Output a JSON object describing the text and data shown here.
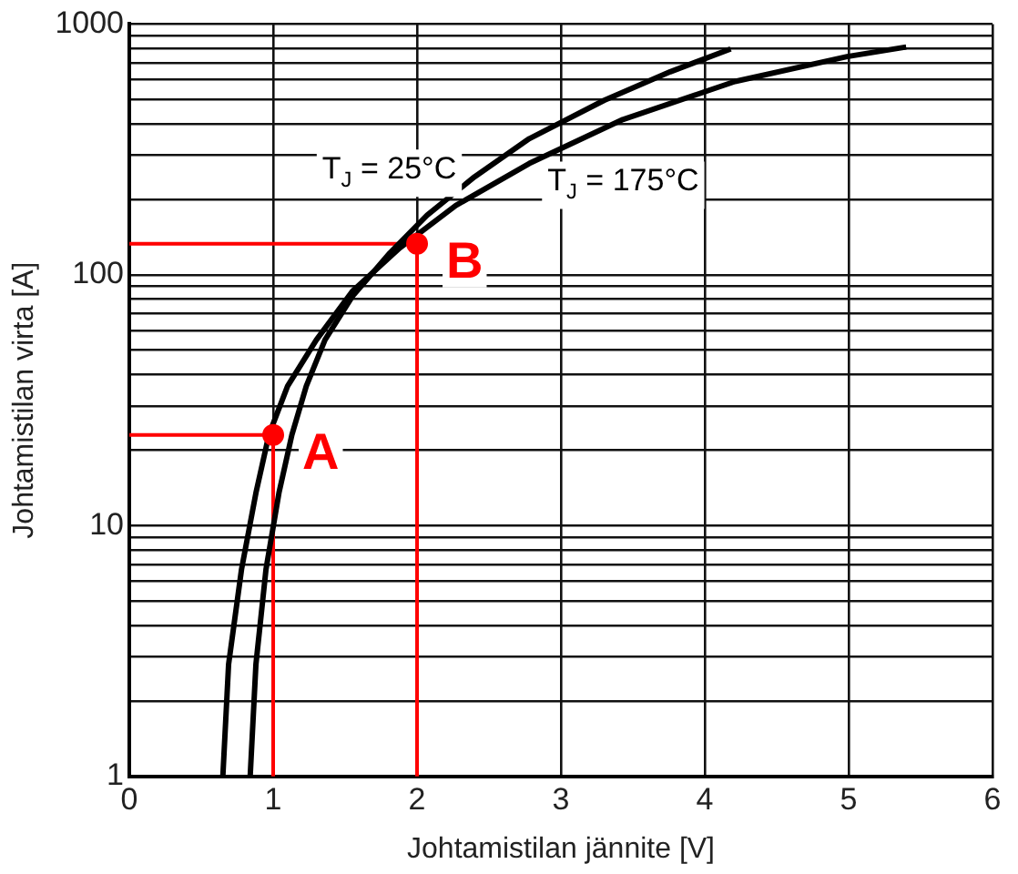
{
  "chart_data": {
    "type": "line",
    "xlabel": "Johtamistilan jännite [V]",
    "ylabel": "Johtamistilan virta [A]",
    "log": "y",
    "grid": true,
    "legend": false,
    "xlim": [
      0,
      6
    ],
    "xticks": [
      0,
      1,
      2,
      3,
      4,
      5,
      6
    ],
    "ylim": [
      1,
      1000
    ],
    "yticks": [
      1,
      {
        "value": 2,
        "label": null
      },
      {
        "value": 3,
        "label": null
      },
      {
        "value": 4,
        "label": null
      },
      {
        "value": 5,
        "label": null
      },
      {
        "value": 6,
        "label": null
      },
      {
        "value": 7,
        "label": null
      },
      {
        "value": 8,
        "label": null
      },
      {
        "value": 9,
        "label": null
      },
      10,
      {
        "value": 20,
        "label": null
      },
      {
        "value": 30,
        "label": null
      },
      {
        "value": 40,
        "label": null
      },
      {
        "value": 50,
        "label": null
      },
      {
        "value": 60,
        "label": null
      },
      {
        "value": 70,
        "label": null
      },
      {
        "value": 80,
        "label": null
      },
      {
        "value": 90,
        "label": null
      },
      100,
      {
        "value": 200,
        "label": null
      },
      {
        "value": 300,
        "label": null
      },
      {
        "value": 400,
        "label": null
      },
      {
        "value": 500,
        "label": null
      },
      {
        "value": 600,
        "label": null
      },
      {
        "value": 700,
        "label": null
      },
      {
        "value": 800,
        "label": null
      },
      {
        "value": 900,
        "label": null
      },
      1000
    ],
    "series": [
      {
        "name": "T$_{J}$ = 25°C",
        "color": "#000000",
        "x": [
          0.84,
          0.88,
          0.95,
          1.04,
          1.13,
          1.23,
          1.36,
          1.55,
          1.81,
          2.07,
          2.4,
          2.78,
          3.3,
          3.76,
          4.18
        ],
        "values": [
          1,
          2.8,
          6.7,
          13.5,
          23,
          36,
          55,
          82,
          122,
          173,
          246,
          349,
          496,
          645,
          796
        ]
      },
      {
        "name": "T$_{J}$ = 175°C",
        "color": "#000000",
        "x": [
          0.65,
          0.69,
          0.78,
          0.88,
          0.97,
          1.1,
          1.3,
          1.55,
          1.88,
          2.27,
          2.78,
          3.43,
          4.21,
          4.99,
          5.4
        ],
        "values": [
          1,
          2.8,
          6.7,
          13.5,
          23,
          36,
          55,
          86,
          128,
          189,
          278,
          416,
          590,
          742,
          810
        ]
      },
      {
        "type": "line",
        "color": "#ff0000",
        "x": [
          0,
          1,
          1
        ],
        "values": [
          23,
          23,
          1
        ]
      },
      {
        "type": "line",
        "color": "#ff0000",
        "x": [
          0,
          2,
          2
        ],
        "values": [
          133,
          133,
          1
        ]
      },
      {
        "type": "scatter",
        "color": "#ff0000",
        "x": [
          1,
          2
        ],
        "values": [
          23,
          133
        ]
      }
    ],
    "annotations": [
      {
        "text": "A",
        "x": 1,
        "y": 23
      },
      {
        "text": "B",
        "x": 2,
        "y": 133
      }
    ]
  }
}
